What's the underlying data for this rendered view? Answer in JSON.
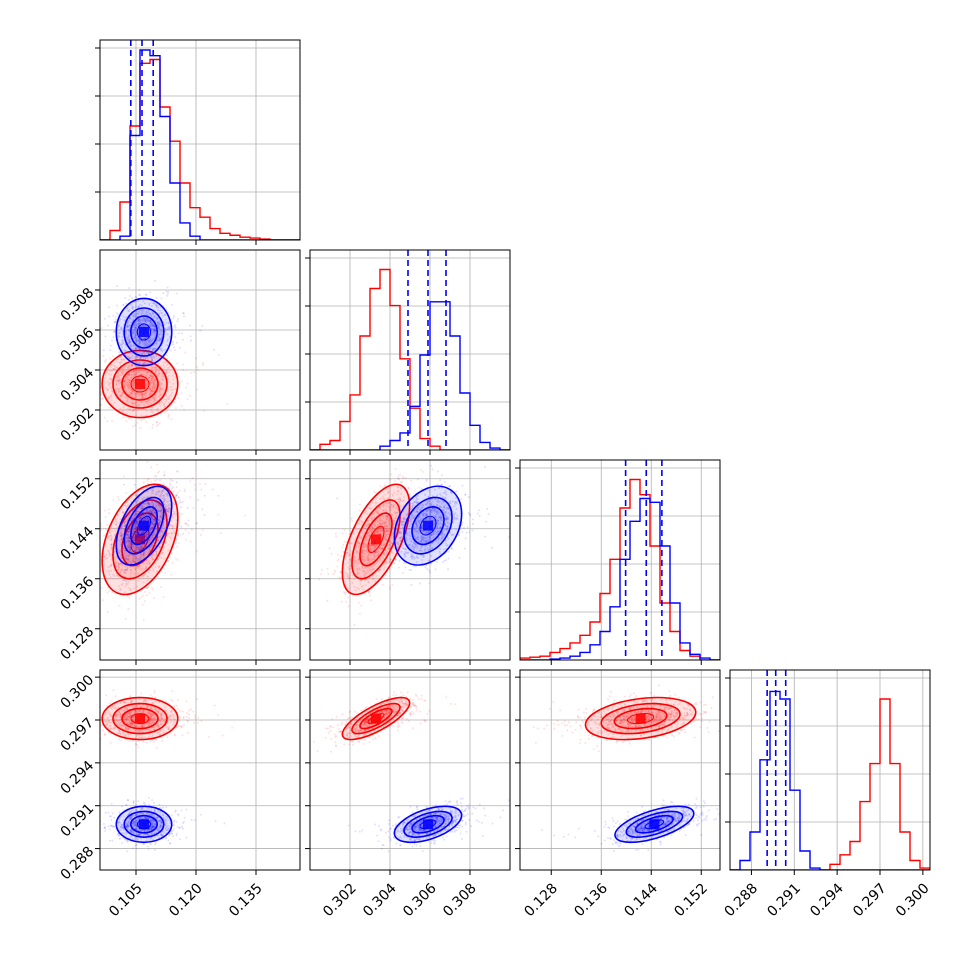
{
  "chart_data": {
    "type": "corner",
    "description_free": true,
    "colors": {
      "red": "#ff0000",
      "blue": "#0000ff",
      "grid": "#b0b0b0",
      "axes": "#000000"
    },
    "grid": true,
    "parameters": [
      {
        "range": [
          0.096,
          0.146
        ],
        "ticks": [
          0.105,
          0.12,
          0.135
        ],
        "tick_labels": [
          "0.105",
          "0.120",
          "0.135"
        ]
      },
      {
        "range": [
          0.3,
          0.31
        ],
        "ticks": [
          0.302,
          0.304,
          0.306,
          0.308
        ],
        "tick_labels": [
          "0.302",
          "0.304",
          "0.306",
          "0.308"
        ]
      },
      {
        "range": [
          0.123,
          0.155
        ],
        "ticks": [
          0.128,
          0.136,
          0.144,
          0.152
        ],
        "tick_labels": [
          "0.128",
          "0.136",
          "0.144",
          "0.152"
        ]
      },
      {
        "range": [
          0.2865,
          0.3005
        ],
        "ticks": [
          0.288,
          0.291,
          0.294,
          0.297,
          0.3
        ],
        "tick_labels": [
          "0.288",
          "0.291",
          "0.294",
          "0.297",
          "0.300"
        ]
      }
    ],
    "series": [
      {
        "color": "red",
        "means": [
          0.106,
          0.3033,
          0.1423,
          0.2971
        ],
        "sigmas": [
          0.0045,
          0.0008,
          0.0042,
          0.0007
        ],
        "correlations": [
          [
            1,
            0.0,
            0.4,
            0.0
          ],
          [
            0.0,
            1,
            0.6,
            0.75
          ],
          [
            0.4,
            0.6,
            1,
            0.3
          ],
          [
            0.0,
            0.75,
            0.3,
            1
          ]
        ]
      },
      {
        "color": "blue",
        "means": [
          0.107,
          0.3059,
          0.1445,
          0.2897
        ],
        "sigmas": [
          0.0033,
          0.0008,
          0.003,
          0.0006
        ],
        "correlations": [
          [
            1,
            0.0,
            0.5,
            0.0
          ],
          [
            0.0,
            1,
            0.3,
            0.5
          ],
          [
            0.5,
            0.3,
            1,
            0.6
          ],
          [
            0.0,
            0.5,
            0.6,
            1
          ]
        ]
      }
    ],
    "quantile_lines": {
      "color": "blue",
      "style": "dashed",
      "values": [
        [
          0.1037,
          0.1065,
          0.1093
        ],
        [
          0.3049,
          0.3059,
          0.3068
        ],
        [
          0.1399,
          0.1432,
          0.1457
        ],
        [
          0.2891,
          0.2897,
          0.2904
        ]
      ]
    },
    "histograms": [
      {
        "bins": [
          0.096,
          0.0985,
          0.101,
          0.1035,
          0.106,
          0.1085,
          0.111,
          0.1135,
          0.116,
          0.1185,
          0.121,
          0.1235,
          0.126,
          0.1285,
          0.131,
          0.1335,
          0.136,
          0.1385,
          0.141,
          0.1435,
          0.146
        ],
        "red": [
          0,
          0.05,
          0.2,
          0.6,
          0.93,
          0.95,
          0.7,
          0.52,
          0.3,
          0.17,
          0.12,
          0.06,
          0.035,
          0.025,
          0.015,
          0.01,
          0.005,
          0,
          0,
          0
        ],
        "blue": [
          0,
          0,
          0.02,
          0.55,
          1.0,
          0.97,
          0.65,
          0.3,
          0.09,
          0.02,
          0,
          0,
          0,
          0,
          0,
          0,
          0,
          0,
          0,
          0
        ]
      },
      {
        "bins": [
          0.3,
          0.3005,
          0.301,
          0.3015,
          0.302,
          0.3025,
          0.303,
          0.3035,
          0.304,
          0.3045,
          0.305,
          0.3055,
          0.306,
          0.3065,
          0.307,
          0.3075,
          0.308,
          0.3085,
          0.309,
          0.3095,
          0.31
        ],
        "red": [
          0,
          0.03,
          0.05,
          0.15,
          0.29,
          0.6,
          0.85,
          0.95,
          0.76,
          0.48,
          0.22,
          0.06,
          0.02,
          0,
          0,
          0,
          0,
          0,
          0,
          0
        ],
        "blue": [
          0,
          0,
          0,
          0,
          0,
          0,
          0,
          0.02,
          0.05,
          0.09,
          0.23,
          0.5,
          0.78,
          0.78,
          0.6,
          0.3,
          0.13,
          0.04,
          0.01,
          0
        ]
      },
      {
        "bins": [
          0.123,
          0.1246,
          0.1262,
          0.1278,
          0.1294,
          0.131,
          0.1326,
          0.1342,
          0.1358,
          0.1374,
          0.139,
          0.1406,
          0.1422,
          0.1438,
          0.1454,
          0.147,
          0.1486,
          0.1502,
          0.1518,
          0.1534,
          0.155
        ],
        "red": [
          0.01,
          0.015,
          0.02,
          0.04,
          0.06,
          0.09,
          0.13,
          0.2,
          0.35,
          0.53,
          0.8,
          0.95,
          0.87,
          0.6,
          0.3,
          0.15,
          0.05,
          0.02,
          0,
          0
        ],
        "blue": [
          0,
          0,
          0,
          0.005,
          0.01,
          0.02,
          0.04,
          0.08,
          0.15,
          0.28,
          0.53,
          0.73,
          0.85,
          0.83,
          0.6,
          0.3,
          0.09,
          0.03,
          0.01,
          0
        ]
      },
      {
        "bins": [
          0.2865,
          0.2872,
          0.2879,
          0.2886,
          0.2893,
          0.29,
          0.2907,
          0.2914,
          0.2921,
          0.2928,
          0.2935,
          0.2942,
          0.2949,
          0.2956,
          0.2963,
          0.297,
          0.2977,
          0.2984,
          0.2991,
          0.2998,
          0.3005
        ],
        "red": [
          0,
          0,
          0,
          0,
          0,
          0,
          0,
          0,
          0,
          0,
          0.03,
          0.08,
          0.15,
          0.36,
          0.56,
          0.9,
          0.56,
          0.2,
          0.05,
          0.01
        ],
        "blue": [
          0,
          0.05,
          0.2,
          0.58,
          0.94,
          0.9,
          0.42,
          0.1,
          0.01,
          0,
          0,
          0,
          0,
          0,
          0,
          0,
          0,
          0,
          0,
          0
        ]
      }
    ]
  }
}
